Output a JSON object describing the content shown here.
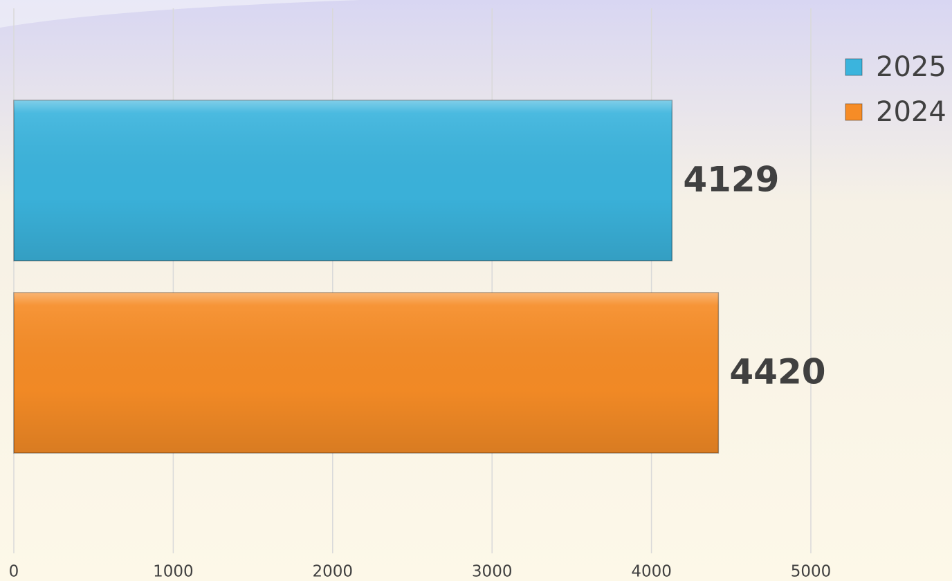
{
  "chart_data": {
    "type": "bar",
    "orientation": "horizontal",
    "categories": [
      null
    ],
    "series": [
      {
        "name": "2025",
        "color": "#3bb4dd",
        "values": [
          4129
        ]
      },
      {
        "name": "2024",
        "color": "#f68c26",
        "values": [
          4420
        ]
      }
    ],
    "xlim": [
      0,
      5000
    ],
    "xticks": [
      0,
      1000,
      2000,
      3000,
      4000,
      5000
    ],
    "grid": true,
    "legend": "top-right"
  }
}
